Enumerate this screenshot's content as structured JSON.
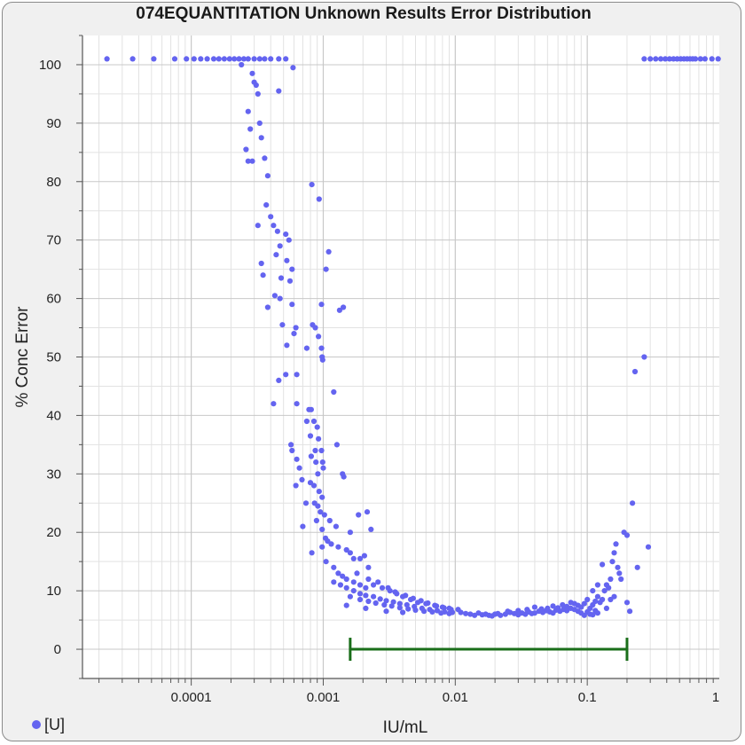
{
  "chart_data": {
    "type": "scatter",
    "title": "074EQUANTITATION Unknown Results Error Distribution",
    "xlabel": "IU/mL",
    "ylabel": "% Conc Error",
    "x_scale": "log",
    "xlim": [
      1.5e-05,
      1
    ],
    "ylim": [
      -5,
      105
    ],
    "x_ticks": [
      "0.0001",
      "0.001",
      "0.01",
      "0.1",
      "1"
    ],
    "y_ticks": [
      "0",
      "10",
      "20",
      "30",
      "40",
      "50",
      "60",
      "70",
      "80",
      "90",
      "100"
    ],
    "grid": true,
    "legend": {
      "position": "bottom-left",
      "entries": [
        "[U]"
      ]
    },
    "series": [
      {
        "name": "[U]",
        "color": "#6464f0",
        "points": [
          [
            2.3e-05,
            101
          ],
          [
            3.6e-05,
            101
          ],
          [
            5.2e-05,
            101
          ],
          [
            7.5e-05,
            101
          ],
          [
            9.2e-05,
            101
          ],
          [
            0.000105,
            101
          ],
          [
            0.000118,
            101
          ],
          [
            0.000132,
            101
          ],
          [
            0.000148,
            101
          ],
          [
            0.000162,
            101
          ],
          [
            0.000178,
            101
          ],
          [
            0.000195,
            101
          ],
          [
            0.000212,
            101
          ],
          [
            0.00023,
            101
          ],
          [
            0.00025,
            101
          ],
          [
            0.00027,
            101
          ],
          [
            0.0003,
            101
          ],
          [
            0.00033,
            101
          ],
          [
            0.00036,
            101
          ],
          [
            0.0004,
            101
          ],
          [
            0.00046,
            101
          ],
          [
            0.00052,
            101
          ],
          [
            0.00024,
            100
          ],
          [
            0.00029,
            98.5
          ],
          [
            0.0003,
            97
          ],
          [
            0.00031,
            96.5
          ],
          [
            0.00032,
            95
          ],
          [
            0.00059,
            99.5
          ],
          [
            0.00046,
            95.5
          ],
          [
            0.00027,
            92
          ],
          [
            0.00028,
            89
          ],
          [
            0.00033,
            90
          ],
          [
            0.00034,
            87.5
          ],
          [
            0.00026,
            85.5
          ],
          [
            0.00027,
            83.5
          ],
          [
            0.00029,
            83.5
          ],
          [
            0.00036,
            84
          ],
          [
            0.00038,
            81
          ],
          [
            0.00082,
            79.5
          ],
          [
            0.00093,
            77
          ],
          [
            0.00037,
            76
          ],
          [
            0.0004,
            74
          ],
          [
            0.00042,
            72.5
          ],
          [
            0.00032,
            72.5
          ],
          [
            0.00045,
            71.5
          ],
          [
            0.00052,
            71
          ],
          [
            0.00055,
            70
          ],
          [
            0.00047,
            69
          ],
          [
            0.00044,
            67.5
          ],
          [
            0.00053,
            66.5
          ],
          [
            0.00058,
            65
          ],
          [
            0.0011,
            68
          ],
          [
            0.00105,
            65
          ],
          [
            0.00034,
            66
          ],
          [
            0.00035,
            64
          ],
          [
            0.00048,
            63.5
          ],
          [
            0.00056,
            63
          ],
          [
            0.00043,
            60.5
          ],
          [
            0.00047,
            60
          ],
          [
            0.00038,
            58.5
          ],
          [
            0.00058,
            59
          ],
          [
            0.00097,
            59
          ],
          [
            0.00133,
            58
          ],
          [
            0.00142,
            58.5
          ],
          [
            0.00049,
            55.5
          ],
          [
            0.00062,
            55
          ],
          [
            0.00083,
            55.5
          ],
          [
            0.00087,
            55
          ],
          [
            0.00092,
            53.5
          ],
          [
            0.0006,
            54
          ],
          [
            0.00053,
            52
          ],
          [
            0.00075,
            51.5
          ],
          [
            0.00097,
            51.5
          ],
          [
            0.00098,
            50
          ],
          [
            0.00099,
            49.5
          ],
          [
            0.00046,
            46
          ],
          [
            0.00052,
            47
          ],
          [
            0.00063,
            47
          ],
          [
            0.00042,
            42
          ],
          [
            0.00063,
            42
          ],
          [
            0.00078,
            41
          ],
          [
            0.00081,
            41
          ],
          [
            0.0012,
            44
          ],
          [
            0.00075,
            39
          ],
          [
            0.00085,
            39
          ],
          [
            0.0009,
            38
          ],
          [
            0.0008,
            36.5
          ],
          [
            0.00092,
            36
          ],
          [
            0.00057,
            35
          ],
          [
            0.00058,
            34
          ],
          [
            0.00087,
            34
          ],
          [
            0.00097,
            34
          ],
          [
            0.00081,
            33
          ],
          [
            0.00088,
            32
          ],
          [
            0.00099,
            32
          ],
          [
            0.00063,
            32.5
          ],
          [
            0.00066,
            31
          ],
          [
            0.00091,
            30
          ],
          [
            0.001,
            31
          ],
          [
            0.00127,
            35
          ],
          [
            0.0014,
            30
          ],
          [
            0.00143,
            29.5
          ],
          [
            0.00069,
            29
          ],
          [
            0.0008,
            28.5
          ],
          [
            0.00085,
            28
          ],
          [
            0.00093,
            27
          ],
          [
            0.00098,
            26
          ],
          [
            0.00062,
            28
          ],
          [
            0.00074,
            25
          ],
          [
            0.00086,
            25
          ],
          [
            0.00091,
            24.5
          ],
          [
            0.00095,
            23.5
          ],
          [
            0.00102,
            23
          ],
          [
            0.00112,
            22
          ],
          [
            0.00125,
            21
          ],
          [
            0.00185,
            23
          ],
          [
            0.00215,
            23.5
          ],
          [
            0.0007,
            21
          ],
          [
            0.00089,
            22
          ],
          [
            0.00098,
            20.5
          ],
          [
            0.00104,
            19
          ],
          [
            0.00108,
            18.5
          ],
          [
            0.00115,
            18
          ],
          [
            0.0013,
            17.5
          ],
          [
            0.0015,
            17
          ],
          [
            0.0016,
            16.5
          ],
          [
            0.0017,
            15.5
          ],
          [
            0.0019,
            15.5
          ],
          [
            0.00205,
            16
          ],
          [
            0.00082,
            16.5
          ],
          [
            0.00098,
            17.5
          ],
          [
            0.00105,
            15
          ],
          [
            0.0012,
            14
          ],
          [
            0.0013,
            13
          ],
          [
            0.0014,
            12.5
          ],
          [
            0.0015,
            12
          ],
          [
            0.0017,
            11.5
          ],
          [
            0.0019,
            11
          ],
          [
            0.0021,
            10.5
          ],
          [
            0.0024,
            11
          ],
          [
            0.0028,
            10.5
          ],
          [
            0.0032,
            10
          ],
          [
            0.0036,
            9.5
          ],
          [
            0.004,
            9
          ],
          [
            0.0046,
            8.5
          ],
          [
            0.0052,
            8
          ],
          [
            0.006,
            7.8
          ],
          [
            0.007,
            7.5
          ],
          [
            0.008,
            7.2
          ],
          [
            0.009,
            7
          ],
          [
            0.0105,
            6.8
          ],
          [
            0.0012,
            11.5
          ],
          [
            0.00135,
            11
          ],
          [
            0.0015,
            10.5
          ],
          [
            0.0017,
            10
          ],
          [
            0.0019,
            9.5
          ],
          [
            0.0021,
            9.2
          ],
          [
            0.0024,
            9
          ],
          [
            0.0027,
            8.6
          ],
          [
            0.003,
            8.3
          ],
          [
            0.0034,
            8.1
          ],
          [
            0.0038,
            7.8
          ],
          [
            0.0043,
            7.6
          ],
          [
            0.0049,
            7.3
          ],
          [
            0.0056,
            7
          ],
          [
            0.0064,
            6.8
          ],
          [
            0.0073,
            6.6
          ],
          [
            0.0083,
            6.4
          ],
          [
            0.0095,
            6.3
          ],
          [
            0.0016,
            9
          ],
          [
            0.0019,
            8.5
          ],
          [
            0.0022,
            8.2
          ],
          [
            0.0025,
            7.9
          ],
          [
            0.0029,
            7.6
          ],
          [
            0.0033,
            7.4
          ],
          [
            0.0038,
            7.1
          ],
          [
            0.0044,
            6.9
          ],
          [
            0.005,
            6.7
          ],
          [
            0.0058,
            6.5
          ],
          [
            0.0067,
            6.4
          ],
          [
            0.0078,
            6.2
          ],
          [
            0.009,
            6.1
          ],
          [
            0.0022,
            12
          ],
          [
            0.0026,
            11.5
          ],
          [
            0.0031,
            10.5
          ],
          [
            0.0035,
            9.8
          ],
          [
            0.0042,
            9.2
          ],
          [
            0.0048,
            8.7
          ],
          [
            0.0055,
            8.3
          ],
          [
            0.0062,
            7.9
          ],
          [
            0.0072,
            7.4
          ],
          [
            0.0082,
            7.1
          ],
          [
            0.0093,
            6.8
          ],
          [
            0.0018,
            13
          ],
          [
            0.0022,
            14
          ],
          [
            0.0016,
            20
          ],
          [
            0.0023,
            20.5
          ],
          [
            0.0015,
            7.5
          ],
          [
            0.0021,
            7
          ],
          [
            0.003,
            6.5
          ],
          [
            0.004,
            6.3
          ],
          [
            0.011,
            6.3
          ],
          [
            0.012,
            6.1
          ],
          [
            0.013,
            6
          ],
          [
            0.014,
            5.8
          ],
          [
            0.015,
            6.2
          ],
          [
            0.016,
            5.9
          ],
          [
            0.017,
            6
          ],
          [
            0.018,
            5.8
          ],
          [
            0.019,
            5.7
          ],
          [
            0.02,
            6
          ],
          [
            0.021,
            6.1
          ],
          [
            0.022,
            5.8
          ],
          [
            0.024,
            6
          ],
          [
            0.026,
            6.3
          ],
          [
            0.028,
            6.1
          ],
          [
            0.03,
            5.9
          ],
          [
            0.032,
            6.2
          ],
          [
            0.034,
            6
          ],
          [
            0.036,
            6.4
          ],
          [
            0.038,
            6.1
          ],
          [
            0.04,
            6.2
          ],
          [
            0.043,
            6.5
          ],
          [
            0.046,
            6.3
          ],
          [
            0.049,
            6.6
          ],
          [
            0.052,
            6.4
          ],
          [
            0.055,
            6.2
          ],
          [
            0.058,
            6.7
          ],
          [
            0.062,
            6.5
          ],
          [
            0.066,
            6.8
          ],
          [
            0.07,
            6.6
          ],
          [
            0.075,
            7
          ],
          [
            0.08,
            6.8
          ],
          [
            0.085,
            6.5
          ],
          [
            0.09,
            6.2
          ],
          [
            0.095,
            5.8
          ],
          [
            0.1,
            6.4
          ],
          [
            0.105,
            7
          ],
          [
            0.11,
            7.6
          ],
          [
            0.115,
            8.2
          ],
          [
            0.12,
            9
          ],
          [
            0.125,
            8
          ],
          [
            0.13,
            8.5
          ],
          [
            0.135,
            10
          ],
          [
            0.14,
            11
          ],
          [
            0.145,
            10.5
          ],
          [
            0.15,
            12
          ],
          [
            0.155,
            15
          ],
          [
            0.16,
            16.5
          ],
          [
            0.165,
            18
          ],
          [
            0.17,
            14
          ],
          [
            0.175,
            13
          ],
          [
            0.18,
            12
          ],
          [
            0.19,
            20
          ],
          [
            0.2,
            19.5
          ],
          [
            0.13,
            14.5
          ],
          [
            0.12,
            11
          ],
          [
            0.11,
            10
          ],
          [
            0.1,
            8.5
          ],
          [
            0.095,
            7.8
          ],
          [
            0.09,
            7.2
          ],
          [
            0.085,
            7.5
          ],
          [
            0.08,
            7.8
          ],
          [
            0.075,
            8
          ],
          [
            0.07,
            7.3
          ],
          [
            0.065,
            7.6
          ],
          [
            0.06,
            7.1
          ],
          [
            0.055,
            7.4
          ],
          [
            0.05,
            7
          ],
          [
            0.045,
            6.9
          ],
          [
            0.04,
            7.2
          ],
          [
            0.035,
            6.8
          ],
          [
            0.03,
            6.6
          ],
          [
            0.025,
            6.5
          ],
          [
            0.12,
            6.2
          ],
          [
            0.14,
            7
          ],
          [
            0.15,
            8.5
          ],
          [
            0.16,
            9
          ],
          [
            0.105,
            6
          ],
          [
            0.11,
            5.9
          ],
          [
            0.115,
            6.6
          ],
          [
            0.2,
            8
          ],
          [
            0.21,
            6.5
          ],
          [
            0.22,
            25
          ],
          [
            0.23,
            47.5
          ],
          [
            0.24,
            14
          ],
          [
            0.27,
            50
          ],
          [
            0.29,
            17.5
          ],
          [
            0.27,
            101
          ],
          [
            0.3,
            101
          ],
          [
            0.33,
            101
          ],
          [
            0.36,
            101
          ],
          [
            0.39,
            101
          ],
          [
            0.42,
            101
          ],
          [
            0.45,
            101
          ],
          [
            0.48,
            101
          ],
          [
            0.51,
            101
          ],
          [
            0.54,
            101
          ],
          [
            0.57,
            101
          ],
          [
            0.6,
            101
          ],
          [
            0.63,
            101
          ],
          [
            0.66,
            101
          ],
          [
            0.72,
            101
          ],
          [
            0.78,
            101
          ],
          [
            0.88,
            101
          ],
          [
            0.98,
            101
          ]
        ]
      }
    ],
    "range_bar": {
      "x_start": 0.0016,
      "x_end": 0.2,
      "y": 0,
      "color": "#1a6e1a"
    }
  }
}
